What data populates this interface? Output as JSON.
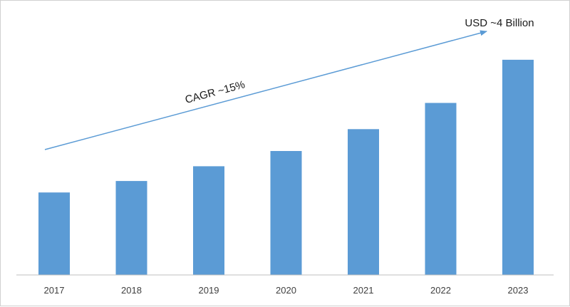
{
  "chart_data": {
    "type": "bar",
    "categories": [
      "2017",
      "2018",
      "2019",
      "2020",
      "2021",
      "2022",
      "2023"
    ],
    "values": [
      1.51,
      1.72,
      1.99,
      2.27,
      2.67,
      3.15,
      3.94
    ],
    "unit": "USD Billion",
    "ylim": [
      0,
      4.5
    ],
    "grid": false,
    "legend": "none",
    "annotations": {
      "end_value": "USD ~4 Billion",
      "growth": "CAGR ~15%"
    },
    "colors": {
      "bar": "#5b9bd5",
      "arrow": "#5b9bd5",
      "axis": "#bfbfbf"
    }
  }
}
